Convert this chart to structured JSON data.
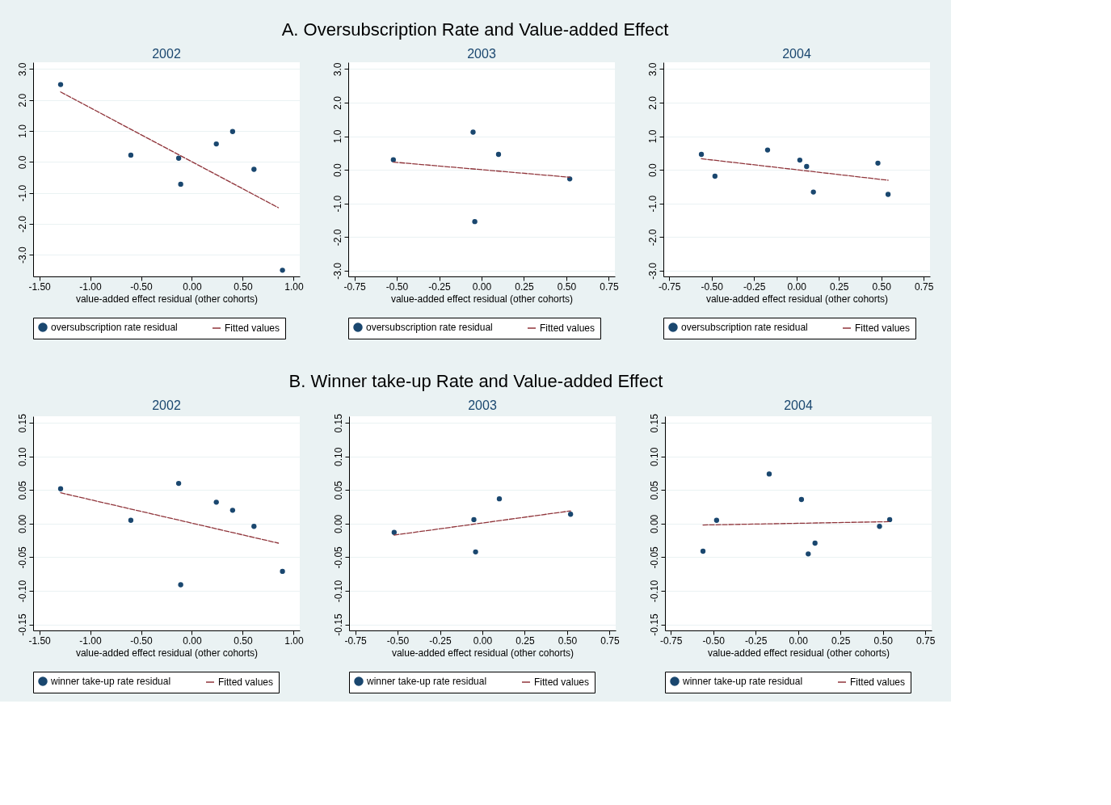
{
  "chart_data": [
    {
      "type": "scatter",
      "title": "2002",
      "xlabel": "value-added effect residual (other cohorts)",
      "annotations": [
        "A. Oversubscription Rate and Value-added Effect"
      ],
      "xlim": [
        -1.56,
        1.06
      ],
      "xticks": [
        {
          "value": -1.5,
          "label": "-1.50"
        },
        {
          "value": -1,
          "label": "-1.00"
        },
        {
          "value": -0.5,
          "label": "-0.50"
        },
        {
          "value": 0,
          "label": "0.00"
        },
        {
          "value": 0.5,
          "label": "0.50"
        },
        {
          "value": 1,
          "label": "1.00"
        }
      ],
      "ylim": [
        -3.7,
        3.22
      ],
      "yticks": [
        {
          "value": -3,
          "label": "-3.0"
        },
        {
          "value": -2,
          "label": "-2.0"
        },
        {
          "value": -1,
          "label": "-1.0"
        },
        {
          "value": 0,
          "label": "0.0"
        },
        {
          "value": 1,
          "label": "1.0"
        },
        {
          "value": 2,
          "label": "2.0"
        },
        {
          "value": 3,
          "label": "3.0"
        }
      ],
      "grid": "y",
      "legend": "bottom",
      "series": [
        {
          "name": "oversubscription rate residual",
          "marker": "circle",
          "color": "#1a476f",
          "x": [
            -1.29,
            -0.6,
            -0.13,
            -0.11,
            0.24,
            0.4,
            0.61,
            0.89
          ],
          "values": [
            2.5,
            0.22,
            0.12,
            -0.72,
            0.58,
            0.98,
            -0.24,
            -3.5
          ]
        },
        {
          "name": "Fitted values",
          "type": "line",
          "marker": "none",
          "line_style": "dashed",
          "color": "#90353b",
          "x": [
            -1.29,
            0.85
          ],
          "values": [
            2.26,
            -1.48
          ]
        }
      ]
    },
    {
      "type": "scatter",
      "title": "2003",
      "xlabel": "value-added effect residual (other cohorts)",
      "xlim": [
        -0.786,
        0.786
      ],
      "xticks": [
        {
          "value": -0.75,
          "label": "-0.75"
        },
        {
          "value": -0.5,
          "label": "-0.50"
        },
        {
          "value": -0.25,
          "label": "-0.25"
        },
        {
          "value": 0,
          "label": "0.00"
        },
        {
          "value": 0.25,
          "label": "0.25"
        },
        {
          "value": 0.5,
          "label": "0.50"
        },
        {
          "value": 0.75,
          "label": "0.75"
        }
      ],
      "ylim": [
        -3.17,
        3.2
      ],
      "yticks": [
        {
          "value": -3,
          "label": "-3.0"
        },
        {
          "value": -2,
          "label": "-2.0"
        },
        {
          "value": -1,
          "label": "-1.0"
        },
        {
          "value": 0,
          "label": "0.0"
        },
        {
          "value": 1,
          "label": "1.0"
        },
        {
          "value": 2,
          "label": "2.0"
        },
        {
          "value": 3,
          "label": "3.0"
        }
      ],
      "grid": "y",
      "legend": "bottom",
      "series": [
        {
          "name": "oversubscription rate residual",
          "marker": "circle",
          "color": "#1a476f",
          "x": [
            -0.52,
            -0.05,
            0.1,
            -0.04,
            0.52
          ],
          "values": [
            0.3,
            1.12,
            0.46,
            -1.54,
            -0.27
          ]
        },
        {
          "name": "Fitted values",
          "type": "line",
          "marker": "none",
          "line_style": "dashed",
          "color": "#90353b",
          "x": [
            -0.52,
            0.52
          ],
          "values": [
            0.23,
            -0.22
          ]
        }
      ]
    },
    {
      "type": "scatter",
      "title": "2004",
      "xlabel": "value-added effect residual (other cohorts)",
      "xlim": [
        -0.784,
        0.787
      ],
      "xticks": [
        {
          "value": -0.75,
          "label": "-0.75"
        },
        {
          "value": -0.5,
          "label": "-0.50"
        },
        {
          "value": -0.25,
          "label": "-0.25"
        },
        {
          "value": 0,
          "label": "0.00"
        },
        {
          "value": 0.25,
          "label": "0.25"
        },
        {
          "value": 0.5,
          "label": "0.50"
        },
        {
          "value": 0.75,
          "label": "0.75"
        }
      ],
      "ylim": [
        -3.17,
        3.2
      ],
      "yticks": [
        {
          "value": -3,
          "label": "-3.0"
        },
        {
          "value": -2,
          "label": "-2.0"
        },
        {
          "value": -1,
          "label": "-1.0"
        },
        {
          "value": 0,
          "label": "0.0"
        },
        {
          "value": 1,
          "label": "1.0"
        },
        {
          "value": 2,
          "label": "2.0"
        },
        {
          "value": 3,
          "label": "3.0"
        }
      ],
      "grid": "y",
      "legend": "bottom",
      "series": [
        {
          "name": "oversubscription rate residual",
          "marker": "circle",
          "color": "#1a476f",
          "x": [
            -0.56,
            -0.48,
            -0.17,
            0.02,
            0.06,
            0.1,
            0.48,
            0.54
          ],
          "values": [
            0.46,
            -0.19,
            0.59,
            0.29,
            0.1,
            -0.66,
            0.2,
            -0.73
          ]
        },
        {
          "name": "Fitted values",
          "type": "line",
          "marker": "none",
          "line_style": "dashed",
          "color": "#90353b",
          "x": [
            -0.56,
            0.54
          ],
          "values": [
            0.33,
            -0.31
          ]
        }
      ]
    },
    {
      "type": "scatter",
      "title": "2002",
      "xlabel": "value-added effect residual (other cohorts)",
      "annotations": [
        "B. Winner take-up Rate and Value-added Effect"
      ],
      "xlim": [
        -1.56,
        1.06
      ],
      "xticks": [
        {
          "value": -1.5,
          "label": "-1.50"
        },
        {
          "value": -1,
          "label": "-1.00"
        },
        {
          "value": -0.5,
          "label": "-0.50"
        },
        {
          "value": 0,
          "label": "0.00"
        },
        {
          "value": 0.5,
          "label": "0.50"
        },
        {
          "value": 1,
          "label": "1.00"
        }
      ],
      "ylim": [
        -0.159,
        0.16
      ],
      "yticks": [
        -0.15,
        {
          "value": -0.1,
          "label": "-0.10"
        },
        -0.05,
        {
          "value": 0,
          "label": "0.00"
        },
        0.05,
        {
          "value": 0.1,
          "label": "0.10"
        },
        0.15
      ],
      "grid": "y",
      "legend": "bottom",
      "series": [
        {
          "name": "winner take-up rate residual",
          "marker": "circle",
          "color": "#1a476f",
          "x": [
            -1.29,
            -0.6,
            -0.13,
            -0.11,
            0.24,
            0.4,
            0.61,
            0.89
          ],
          "values": [
            0.052,
            0.005,
            0.06,
            -0.091,
            0.032,
            0.02,
            -0.004,
            -0.071
          ]
        },
        {
          "name": "Fitted values",
          "type": "line",
          "marker": "none",
          "line_style": "dashed",
          "color": "#90353b",
          "x": [
            -1.29,
            0.85
          ],
          "values": [
            0.046,
            -0.029
          ]
        }
      ]
    },
    {
      "type": "scatter",
      "title": "2003",
      "xlabel": "value-added effect residual (other cohorts)",
      "xlim": [
        -0.786,
        0.786
      ],
      "xticks": [
        {
          "value": -0.75,
          "label": "-0.75"
        },
        {
          "value": -0.5,
          "label": "-0.50"
        },
        {
          "value": -0.25,
          "label": "-0.25"
        },
        {
          "value": 0,
          "label": "0.00"
        },
        {
          "value": 0.25,
          "label": "0.25"
        },
        {
          "value": 0.5,
          "label": "0.50"
        },
        {
          "value": 0.75,
          "label": "0.75"
        }
      ],
      "ylim": [
        -0.159,
        0.16
      ],
      "yticks": [
        -0.15,
        {
          "value": -0.1,
          "label": "-0.10"
        },
        -0.05,
        {
          "value": 0,
          "label": "0.00"
        },
        0.05,
        {
          "value": 0.1,
          "label": "0.10"
        },
        0.15
      ],
      "grid": "y",
      "legend": "bottom",
      "series": [
        {
          "name": "winner take-up rate residual",
          "marker": "circle",
          "color": "#1a476f",
          "x": [
            -0.52,
            -0.05,
            0.1,
            -0.04,
            0.52
          ],
          "values": [
            -0.013,
            0.006,
            0.037,
            -0.042,
            0.014
          ]
        },
        {
          "name": "Fitted values",
          "type": "line",
          "marker": "none",
          "line_style": "dashed",
          "color": "#90353b",
          "x": [
            -0.52,
            0.52
          ],
          "values": [
            -0.017,
            0.019
          ]
        }
      ]
    },
    {
      "type": "scatter",
      "title": "2004",
      "xlabel": "value-added effect residual (other cohorts)",
      "xlim": [
        -0.784,
        0.787
      ],
      "xticks": [
        {
          "value": -0.75,
          "label": "-0.75"
        },
        {
          "value": -0.5,
          "label": "-0.50"
        },
        {
          "value": -0.25,
          "label": "-0.25"
        },
        {
          "value": 0,
          "label": "0.00"
        },
        {
          "value": 0.25,
          "label": "0.25"
        },
        {
          "value": 0.5,
          "label": "0.50"
        },
        {
          "value": 0.75,
          "label": "0.75"
        }
      ],
      "ylim": [
        -0.159,
        0.16
      ],
      "yticks": [
        -0.15,
        {
          "value": -0.1,
          "label": "-0.10"
        },
        -0.05,
        {
          "value": 0,
          "label": "0.00"
        },
        0.05,
        {
          "value": 0.1,
          "label": "0.10"
        },
        0.15
      ],
      "grid": "y",
      "legend": "bottom",
      "series": [
        {
          "name": "winner take-up rate residual",
          "marker": "circle",
          "color": "#1a476f",
          "x": [
            -0.56,
            -0.48,
            -0.17,
            0.02,
            0.06,
            0.1,
            0.48,
            0.54
          ],
          "values": [
            -0.041,
            0.005,
            0.074,
            0.036,
            -0.045,
            -0.029,
            -0.004,
            0.006
          ]
        },
        {
          "name": "Fitted values",
          "type": "line",
          "marker": "none",
          "line_style": "dashed",
          "color": "#90353b",
          "x": [
            -0.56,
            0.54
          ],
          "values": [
            -0.002,
            0.003
          ]
        }
      ]
    }
  ]
}
